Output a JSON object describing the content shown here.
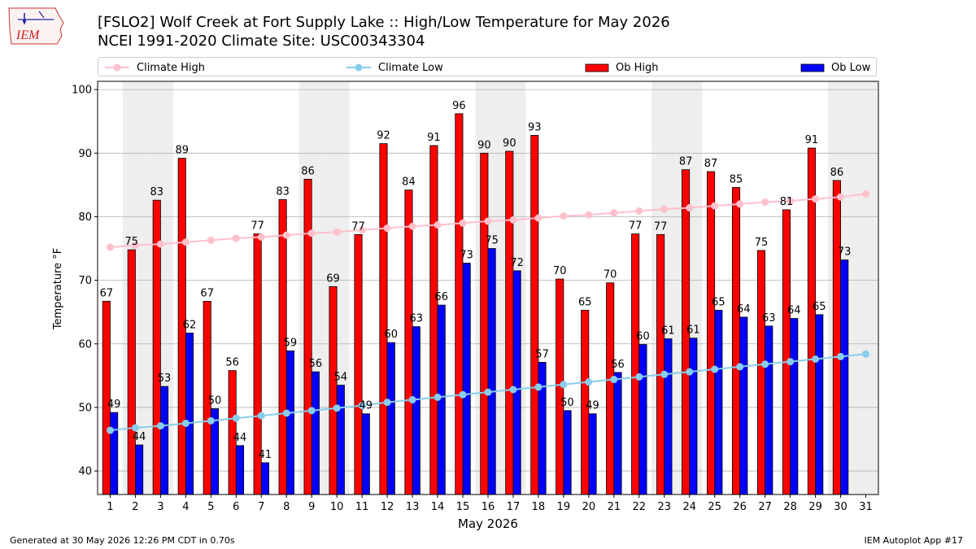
{
  "header": {
    "title_line1": "[FSLO2] Wolf Creek at Fort Supply Lake :: High/Low Temperature for May 2026",
    "title_line2": "NCEI 1991-2020 Climate Site: USC00343304"
  },
  "logo": {
    "text": "IEM",
    "icon": "iem-iowa-logo"
  },
  "legend": [
    {
      "label": "Climate High",
      "kind": "line",
      "color": "#ffc0cb"
    },
    {
      "label": "Climate Low",
      "kind": "line",
      "color": "#87ceeb"
    },
    {
      "label": "Ob High",
      "kind": "bar",
      "color": "#ff0000"
    },
    {
      "label": "Ob Low",
      "kind": "bar",
      "color": "#0000ff"
    }
  ],
  "footer": {
    "left": "Generated at 30 May 2026 12:26 PM CDT in 0.70s",
    "right": "IEM Autoplot App #17"
  },
  "chart_data": {
    "type": "bar",
    "xlabel": "May 2026",
    "ylabel": "Temperature °F",
    "ylim": [
      36.3,
      101.3
    ],
    "yticks": [
      40,
      50,
      60,
      70,
      80,
      90,
      100
    ],
    "grid": "horizontal",
    "weekend_shading_days": [
      2,
      3,
      9,
      10,
      16,
      17,
      23,
      24,
      30,
      31
    ],
    "categories": [
      "1",
      "2",
      "3",
      "4",
      "5",
      "6",
      "7",
      "8",
      "9",
      "10",
      "11",
      "12",
      "13",
      "14",
      "15",
      "16",
      "17",
      "18",
      "19",
      "20",
      "21",
      "22",
      "23",
      "24",
      "25",
      "26",
      "27",
      "28",
      "29",
      "30",
      "31"
    ],
    "series": [
      {
        "name": "Ob High",
        "kind": "bar",
        "color": "#ff0000",
        "values": [
          66.7,
          74.8,
          82.6,
          89.2,
          66.7,
          55.8,
          77.3,
          82.7,
          85.9,
          69.0,
          77.2,
          91.5,
          84.2,
          91.2,
          96.2,
          90.0,
          90.3,
          92.8,
          70.2,
          65.3,
          69.6,
          77.3,
          77.2,
          87.4,
          87.1,
          84.6,
          74.7,
          81.1,
          90.8,
          85.7,
          null
        ],
        "labels": [
          "67",
          "75",
          "83",
          "89",
          "67",
          "56",
          "77",
          "83",
          "86",
          "69",
          "77",
          "92",
          "84",
          "91",
          "96",
          "90",
          "90",
          "93",
          "70",
          "65",
          "70",
          "77",
          "77",
          "87",
          "87",
          "85",
          "75",
          "81",
          "91",
          "86",
          ""
        ]
      },
      {
        "name": "Ob Low",
        "kind": "bar",
        "color": "#0000ff",
        "values": [
          49.2,
          44.1,
          53.3,
          61.7,
          49.8,
          44.0,
          41.3,
          58.9,
          55.6,
          53.5,
          49.0,
          60.2,
          62.7,
          66.1,
          72.7,
          75.0,
          71.5,
          57.1,
          49.5,
          49.0,
          55.5,
          59.9,
          60.8,
          60.9,
          65.3,
          64.2,
          62.8,
          64.0,
          64.6,
          73.2,
          null
        ],
        "labels": [
          "49",
          "44",
          "53",
          "62",
          "50",
          "44",
          "41",
          "59",
          "56",
          "54",
          "49",
          "60",
          "63",
          "66",
          "73",
          "75",
          "72",
          "57",
          "50",
          "49",
          "56",
          "60",
          "61",
          "61",
          "65",
          "64",
          "63",
          "64",
          "65",
          "73",
          ""
        ]
      },
      {
        "name": "Climate High",
        "kind": "line",
        "color": "#ffc0cb",
        "values": [
          75.2,
          75.5,
          75.7,
          76.0,
          76.3,
          76.6,
          76.8,
          77.1,
          77.4,
          77.6,
          77.9,
          78.2,
          78.5,
          78.7,
          79.0,
          79.3,
          79.5,
          79.8,
          80.1,
          80.3,
          80.6,
          80.9,
          81.2,
          81.4,
          81.7,
          82.0,
          82.3,
          82.5,
          82.8,
          83.1,
          83.6
        ]
      },
      {
        "name": "Climate Low",
        "kind": "line",
        "color": "#87ceeb",
        "values": [
          46.4,
          46.8,
          47.1,
          47.5,
          47.9,
          48.3,
          48.7,
          49.1,
          49.5,
          49.9,
          50.3,
          50.8,
          51.2,
          51.6,
          52.0,
          52.4,
          52.8,
          53.2,
          53.6,
          54.0,
          54.4,
          54.8,
          55.2,
          55.6,
          56.0,
          56.4,
          56.8,
          57.2,
          57.6,
          58.0,
          58.4
        ]
      }
    ]
  }
}
